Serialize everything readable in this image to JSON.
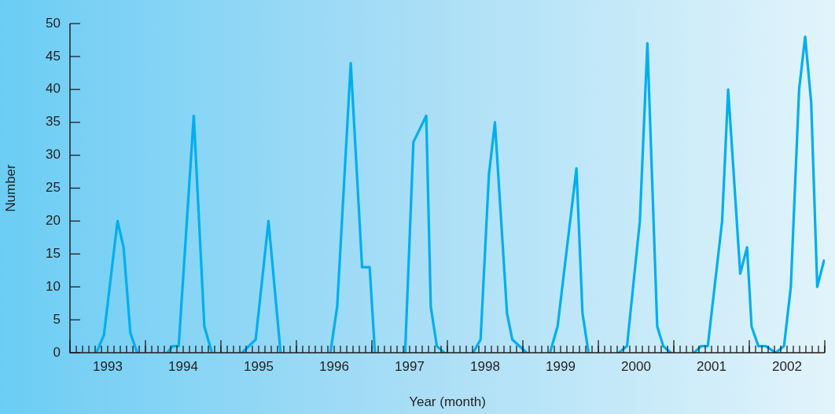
{
  "chart_data": {
    "type": "line",
    "xlabel": "Year (month)",
    "ylabel": "Number",
    "x": [
      1993.35,
      1993.45,
      1993.63,
      1993.71,
      1993.8,
      1993.89,
      1994.0,
      1994.29,
      1994.36,
      1994.44,
      1994.64,
      1994.78,
      1994.88,
      1995.0,
      1995.28,
      1995.46,
      1995.63,
      1995.79,
      1996.0,
      1996.45,
      1996.54,
      1996.72,
      1996.87,
      1996.97,
      1997.04,
      1997.2,
      1997.44,
      1997.55,
      1997.72,
      1997.78,
      1997.86,
      1997.96,
      1998.1,
      1998.34,
      1998.44,
      1998.55,
      1998.63,
      1998.79,
      1998.86,
      1999.05,
      1999.2,
      1999.36,
      1999.46,
      1999.71,
      1999.79,
      1999.87,
      2000.0,
      2000.27,
      2000.38,
      2000.55,
      2000.65,
      2000.78,
      2000.86,
      2000.96,
      2001.1,
      2001.27,
      2001.36,
      2001.45,
      2001.64,
      2001.72,
      2001.88,
      2001.97,
      2002.03,
      2002.12,
      2002.22,
      2002.35,
      2002.46,
      2002.55,
      2002.66,
      2002.74,
      2002.82,
      2002.9,
      2002.99
    ],
    "series": [
      {
        "color": "#00aeef",
        "values": [
          0,
          2.7,
          20,
          16,
          3,
          0,
          null,
          0,
          1,
          1,
          36,
          4,
          0,
          null,
          0,
          2,
          20,
          0,
          null,
          0,
          7,
          44,
          13,
          13,
          0,
          null,
          0,
          32,
          36,
          7,
          1,
          0,
          null,
          0,
          2,
          27,
          35,
          6,
          2,
          0,
          null,
          0,
          4,
          28,
          6,
          0,
          null,
          0,
          1,
          20,
          47,
          4,
          1,
          0,
          null,
          0,
          1,
          1,
          20,
          40,
          12,
          16,
          4,
          1,
          1,
          0,
          1,
          10,
          40,
          48,
          38,
          10,
          14
        ]
      }
    ],
    "xlim": [
      1993,
      2003
    ],
    "xticks": [
      {
        "value": 1993,
        "label": null
      },
      {
        "value": 1993.5,
        "label": "1993"
      },
      {
        "value": 1994,
        "label": null
      },
      {
        "value": 1994.5,
        "label": "1994"
      },
      {
        "value": 1995,
        "label": null
      },
      {
        "value": 1995.5,
        "label": "1995"
      },
      {
        "value": 1996,
        "label": null
      },
      {
        "value": 1996.5,
        "label": "1996"
      },
      {
        "value": 1997,
        "label": null
      },
      {
        "value": 1997.5,
        "label": "1997"
      },
      {
        "value": 1998,
        "label": null
      },
      {
        "value": 1998.5,
        "label": "1998"
      },
      {
        "value": 1999,
        "label": null
      },
      {
        "value": 1999.5,
        "label": "1999"
      },
      {
        "value": 2000,
        "label": null
      },
      {
        "value": 2000.5,
        "label": "2000"
      },
      {
        "value": 2001,
        "label": null
      },
      {
        "value": 2001.5,
        "label": "2001"
      },
      {
        "value": 2002,
        "label": null
      },
      {
        "value": 2002.5,
        "label": "2002"
      },
      {
        "value": 2003,
        "label": null
      }
    ],
    "ylim": [
      0,
      50
    ],
    "yticks": [
      0,
      5,
      10,
      15,
      20,
      25,
      30,
      35,
      40,
      45,
      50
    ],
    "grid": false,
    "legend": false,
    "marker": "none",
    "line_style": "solid"
  }
}
